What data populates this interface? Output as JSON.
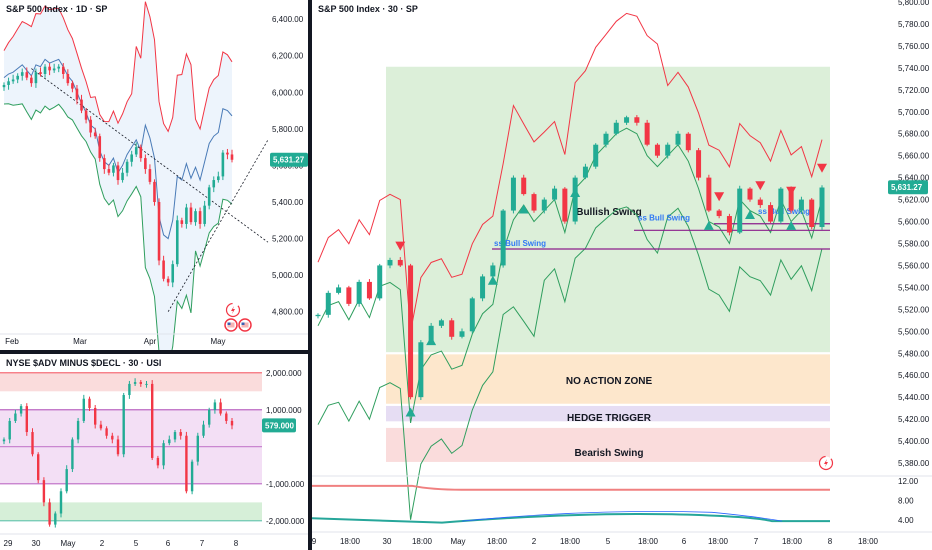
{
  "colors": {
    "up": "#22ab94",
    "down": "#f23645",
    "zone_green": "#dcefd9",
    "zone_orange": "#fde7cc",
    "zone_purple": "#e6ddf3",
    "zone_red": "#fadcdc",
    "accent_band": "#e8f1fb",
    "upper_line": "#f23645",
    "mid_line": "#4a7bb7",
    "lower_line": "#2f9e5e",
    "level_line": "#8b1e8b"
  },
  "panel_daily": {
    "title": "S&P 500 Index · 1D · SP",
    "price_badge": "5,631.27",
    "y_ticks": [
      "6,400.00",
      "6,200.00",
      "6,000.00",
      "5,800.00",
      "5,600.00",
      "5,400.00",
      "5,200.00",
      "5,000.00",
      "4,800.00"
    ],
    "x_ticks": [
      "Feb",
      "Mar",
      "Apr",
      "May"
    ],
    "icons": [
      "lightning-icon",
      "us-flag-icon",
      "us-flag-icon"
    ]
  },
  "panel_breadth": {
    "title": "NYSE $ADV MINUS $DECL · 30 · USI",
    "value_badge": "579.000",
    "y_ticks": [
      "2,000.000",
      "1,000.000",
      "-1,000.000",
      "-2,000.000"
    ],
    "x_ticks": [
      "29",
      "30",
      "May",
      "2",
      "5",
      "6",
      "7",
      "8"
    ]
  },
  "panel_main": {
    "title": "S&P 500 Index · 30 · SP",
    "price_badge": "5,631.27",
    "zones": {
      "bullish": "Bullish Swing",
      "no_action": "NO ACTION ZONE",
      "hedge": "HEDGE TRIGGER",
      "bearish": "Bearish Swing"
    },
    "swing_labels": [
      "ss Bull Swing",
      "ss Bull Swing",
      "ss Bull Swing"
    ],
    "y_ticks": [
      "5,800.00",
      "5,780.00",
      "5,760.00",
      "5,740.00",
      "5,720.00",
      "5,700.00",
      "5,680.00",
      "5,660.00",
      "5,640.00",
      "5,620.00",
      "5,600.00",
      "5,580.00",
      "5,560.00",
      "5,540.00",
      "5,520.00",
      "5,500.00",
      "5,480.00",
      "5,460.00",
      "5,440.00",
      "5,420.00",
      "5,400.00",
      "5,380.00"
    ],
    "x_ticks": [
      "9",
      "18:00",
      "30",
      "18:00",
      "May",
      "18:00",
      "2",
      "18:00",
      "5",
      "18:00",
      "6",
      "18:00",
      "7",
      "18:00",
      "8",
      "18:00"
    ],
    "sub_y_ticks": [
      "12.00",
      "8.00",
      "4.00"
    ],
    "icons": [
      "lightning-icon"
    ]
  },
  "chart_data": [
    {
      "type": "candlestick",
      "title": "S&P 500 Index · 1D · SP",
      "ylim": [
        4700,
        6450
      ],
      "last_price": 5631.27,
      "x_categories": [
        "Feb",
        "Mar",
        "Apr",
        "May"
      ],
      "close_path": [
        6040,
        6060,
        6070,
        6090,
        6110,
        6080,
        6050,
        6110,
        6100,
        6140,
        6120,
        6130,
        6140,
        6100,
        6050,
        6020,
        5960,
        5900,
        5850,
        5780,
        5760,
        5640,
        5580,
        5560,
        5600,
        5520,
        5560,
        5620,
        5660,
        5700,
        5640,
        5580,
        5510,
        5400,
        5080,
        4980,
        4960,
        5060,
        5300,
        5280,
        5370,
        5290,
        5350,
        5280,
        5380,
        5480,
        5520,
        5540,
        5670,
        5660,
        5631
      ]
    },
    {
      "type": "candlestick",
      "title": "NYSE $ADV MINUS $DECL · 30 · USI",
      "ylim": [
        -2300,
        2400
      ],
      "last_value": 579,
      "x_categories": [
        "29",
        "30",
        "May",
        "2",
        "5",
        "6",
        "7",
        "8"
      ],
      "close_path": [
        200,
        700,
        900,
        1100,
        400,
        -200,
        -900,
        -1500,
        -2100,
        -1800,
        -1200,
        -600,
        200,
        700,
        1300,
        1050,
        600,
        500,
        300,
        200,
        -200,
        1400,
        1700,
        1750,
        1700,
        1700,
        -300,
        -500,
        100,
        200,
        400,
        300,
        -1200,
        -400,
        300,
        600,
        1000,
        1200,
        900,
        700,
        579
      ]
    },
    {
      "type": "candlestick",
      "title": "S&P 500 Index · 30 · SP",
      "ylim": [
        5370,
        5800
      ],
      "last_price": 5631.27,
      "x_categories": [
        "9",
        "18:00",
        "30",
        "18:00",
        "May",
        "18:00",
        "2",
        "18:00",
        "5",
        "18:00",
        "6",
        "18:00",
        "7",
        "18:00",
        "8",
        "18:00"
      ],
      "close_path": [
        5515,
        5535,
        5540,
        5525,
        5545,
        5530,
        5560,
        5565,
        5560,
        5440,
        5490,
        5505,
        5510,
        5495,
        5500,
        5530,
        5550,
        5560,
        5610,
        5640,
        5625,
        5610,
        5620,
        5630,
        5600,
        5640,
        5650,
        5670,
        5680,
        5690,
        5695,
        5690,
        5670,
        5660,
        5670,
        5680,
        5665,
        5640,
        5610,
        5605,
        5590,
        5630,
        5620,
        5615,
        5600,
        5630,
        5610,
        5620,
        5595,
        5631
      ],
      "zones": [
        {
          "label": "Bullish Swing",
          "from": 5481,
          "to": 5741
        },
        {
          "label": "NO ACTION ZONE",
          "from": 5434,
          "to": 5479
        },
        {
          "label": "HEDGE TRIGGER",
          "from": 5418,
          "to": 5432
        },
        {
          "label": "Bearish Swing",
          "from": 5381,
          "to": 5412
        }
      ],
      "levels": [
        {
          "label": "ss Bull Swing",
          "value": 5575
        },
        {
          "label": "ss Bull Swing",
          "value": 5592
        },
        {
          "label": "ss Bull Swing",
          "value": 5598
        }
      ],
      "sub_indicator": {
        "ylim": [
          2,
          13
        ],
        "red_line": 10.2,
        "teal_line": 3.8,
        "y_ticks": [
          12,
          8,
          4
        ]
      }
    }
  ]
}
